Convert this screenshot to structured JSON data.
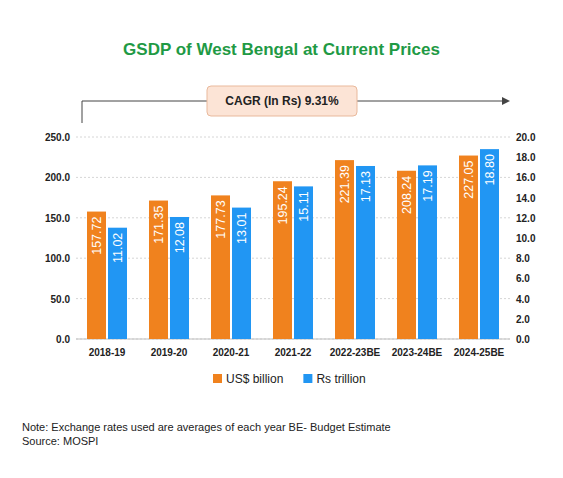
{
  "chart_data": {
    "type": "bar",
    "title": "GSDP of West Bengal at Current Prices",
    "annotations": [
      "CAGR (In Rs) 9.31%"
    ],
    "notes": [
      "Note: Exchange rates used are averages of each year BE- Budget Estimate",
      "Source: MOSPI"
    ],
    "categories": [
      "2018-19",
      "2019-20",
      "2020-21",
      "2021-22",
      "2022-23BE",
      "2023-24BE",
      "2024-25BE"
    ],
    "series": [
      {
        "name": "US$ billion",
        "color": "#f0821e",
        "values": [
          157.72,
          171.35,
          177.73,
          195.24,
          221.39,
          208.24,
          227.05
        ]
      },
      {
        "name": "Rs trillion",
        "color": "#2196f3",
        "axis": "y2",
        "values": [
          11.02,
          12.08,
          13.01,
          15.11,
          17.13,
          17.19,
          18.8
        ],
        "value_labels": [
          "11.02",
          "12.08",
          "13.01",
          "15.11",
          "17.13",
          "17.19",
          "18.80"
        ]
      }
    ],
    "ylim": [
      0,
      250
    ],
    "yticks": [
      {
        "value": 0,
        "label": "0.0"
      },
      {
        "value": 50,
        "label": "50.0"
      },
      {
        "value": 100,
        "label": "100.0"
      },
      {
        "value": 150,
        "label": "150.0"
      },
      {
        "value": 200,
        "label": "200.0"
      },
      {
        "value": 250,
        "label": "250.0"
      }
    ],
    "y2lim": [
      0,
      20
    ],
    "y2ticks": [
      {
        "value": 0,
        "label": "0.0"
      },
      {
        "value": 2,
        "label": "2.0"
      },
      {
        "value": 4,
        "label": "4.0"
      },
      {
        "value": 6,
        "label": "6.0"
      },
      {
        "value": 8,
        "label": "8.0"
      },
      {
        "value": 10,
        "label": "10.0"
      },
      {
        "value": 12,
        "label": "12.0"
      },
      {
        "value": 14,
        "label": "14.0"
      },
      {
        "value": 16,
        "label": "16.0"
      },
      {
        "value": 18,
        "label": "18.0"
      },
      {
        "value": 20,
        "label": "20.0"
      }
    ],
    "grid": true,
    "legend": "bottom",
    "data_labels": true
  }
}
